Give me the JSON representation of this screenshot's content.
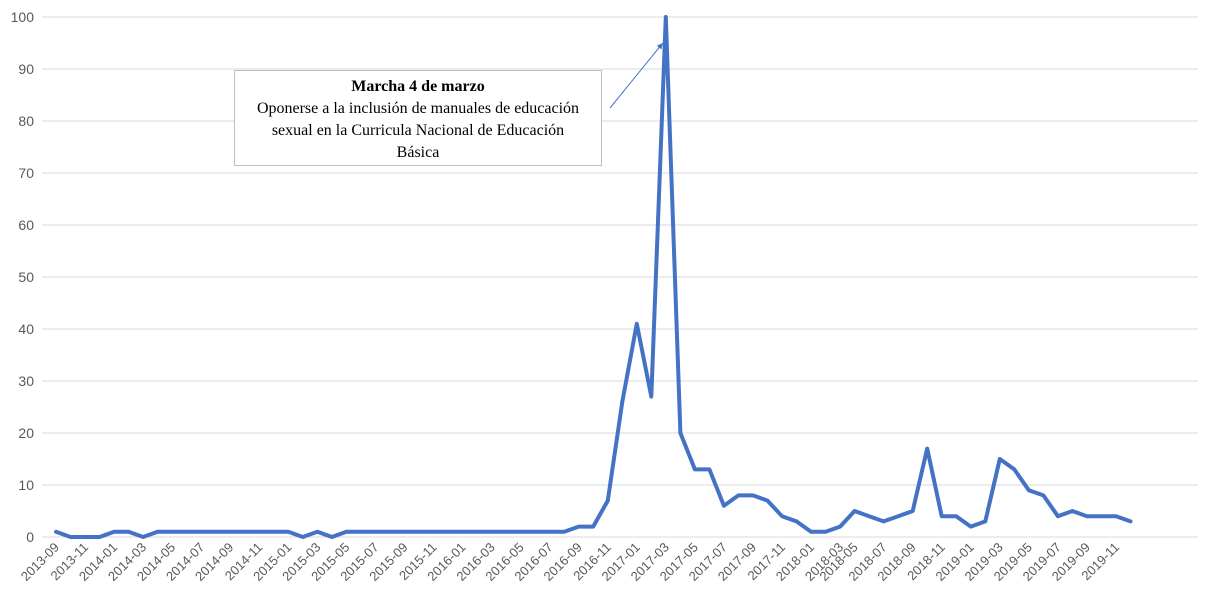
{
  "chart_data": {
    "type": "line",
    "title": "",
    "xlabel": "",
    "ylabel": "",
    "ylim": [
      0,
      100
    ],
    "yticks": [
      0,
      10,
      20,
      30,
      40,
      50,
      60,
      70,
      80,
      90,
      100
    ],
    "grid": true,
    "series_color": "#4472c4",
    "x": [
      "2013-09",
      "2013-10",
      "2013-11",
      "2013-12",
      "2014-01",
      "2014-02",
      "2014-03",
      "2014-04",
      "2014-05",
      "2014-06",
      "2014-07",
      "2014-08",
      "2014-09",
      "2014-10",
      "2014-11",
      "2014-12",
      "2015-01",
      "2015-02",
      "2015-03",
      "2015-04",
      "2015-05",
      "2015-06",
      "2015-07",
      "2015-08",
      "2015-09",
      "2015-10",
      "2015-11",
      "2015-12",
      "2016-01",
      "2016-02",
      "2016-03",
      "2016-04",
      "2016-05",
      "2016-06",
      "2016-07",
      "2016-08",
      "2016-09",
      "2016-10",
      "2016-11",
      "2016-12",
      "2017-01",
      "2017-02",
      "2017-03",
      "2017-04",
      "2017-05",
      "2017-06",
      "2017-07",
      "2017-08",
      "2017-09",
      "2017-10",
      "2017-11",
      "2017-12",
      "2018-01",
      "2018-02",
      "2018-03",
      "2018-05",
      "2018-06",
      "2018-07",
      "2018-08",
      "2018-09",
      "2018-10",
      "2018-11",
      "2018-12",
      "2019-01",
      "2019-02",
      "2019-03",
      "2019-04",
      "2019-05",
      "2019-06",
      "2019-07",
      "2019-08",
      "2019-09",
      "2019-10",
      "2019-11",
      "2019-12"
    ],
    "series": [
      {
        "values": [
          1,
          0,
          0,
          0,
          1,
          1,
          0,
          1,
          1,
          1,
          1,
          1,
          1,
          1,
          1,
          1,
          1,
          0,
          1,
          0,
          1,
          1,
          1,
          1,
          1,
          1,
          1,
          1,
          1,
          1,
          1,
          1,
          1,
          1,
          1,
          1,
          2,
          2,
          7,
          26,
          41,
          27,
          100,
          20,
          13,
          13,
          6,
          8,
          8,
          7,
          4,
          3,
          1,
          1,
          2,
          5,
          4,
          3,
          4,
          5,
          17,
          4,
          4,
          2,
          3,
          15,
          13,
          9,
          8,
          4,
          5,
          4,
          4,
          4,
          3
        ]
      }
    ],
    "xtick_labels": [
      "2013-09",
      "2013-11",
      "2014-01",
      "2014-03",
      "2014-05",
      "2014-07",
      "2014-09",
      "2014-11",
      "2015-01",
      "2015-03",
      "2015-05",
      "2015-07",
      "2015-09",
      "2015-11",
      "2016-01",
      "2016-03",
      "2016-05",
      "2016-07",
      "2016-09",
      "2016-11",
      "2017-01",
      "2017-03",
      "2017-05",
      "2017-07",
      "2017-09",
      "2017-11",
      "2018-01",
      "2018-03",
      "2018-05",
      "2018-07",
      "2018-09",
      "2018-11",
      "2019-01",
      "2019-03",
      "2019-05",
      "2019-07",
      "2019-09",
      "2019-11"
    ],
    "annotation": {
      "title": "Marcha 4 de marzo",
      "text": "Oponerse a la inclusión de manuales de educación sexual en la Curricula Nacional de Educación Básica",
      "target_x": "2017-03",
      "target_y": 95
    }
  }
}
